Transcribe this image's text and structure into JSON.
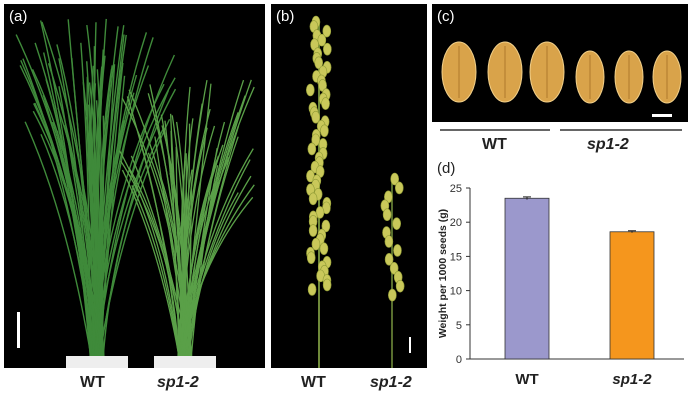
{
  "panels": {
    "a": {
      "label": "(a)",
      "groups": [
        "WT",
        "sp1-2"
      ]
    },
    "b": {
      "label": "(b)",
      "groups": [
        "WT",
        "sp1-2"
      ]
    },
    "c": {
      "label": "(c)",
      "groups": [
        "WT",
        "sp1-2"
      ]
    },
    "d": {
      "label": "(d)"
    }
  },
  "colors": {
    "wt_bar": "#9b98cc",
    "sp_bar": "#f5961d",
    "panel_bg": "#000000",
    "grain": "#d9a34a"
  },
  "chart_data": {
    "type": "bar",
    "categories": [
      "WT",
      "sp1-2"
    ],
    "values": [
      23.5,
      18.6
    ],
    "error": [
      0.2,
      0.15
    ],
    "ylabel": "Weight per 1000 seeds (g)",
    "ylim": [
      0,
      25
    ],
    "yticks": [
      0,
      5,
      10,
      15,
      20,
      25
    ],
    "grid": false
  }
}
